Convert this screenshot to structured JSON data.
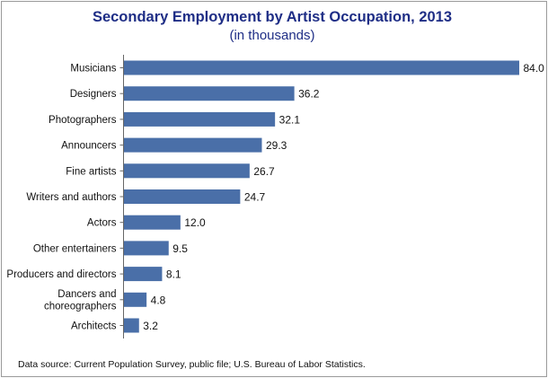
{
  "chart_data": {
    "type": "bar",
    "orientation": "horizontal",
    "title": "Secondary Employment by Artist Occupation, 2013",
    "subtitle": "(in thousands)",
    "categories": [
      [
        "Musicians"
      ],
      [
        "Designers"
      ],
      [
        "Photographers"
      ],
      [
        "Announcers"
      ],
      [
        "Fine artists"
      ],
      [
        "Writers and authors"
      ],
      [
        "Actors"
      ],
      [
        "Other entertainers"
      ],
      [
        "Producers and directors"
      ],
      [
        "Dancers and",
        "choreographers"
      ],
      [
        "Architects"
      ]
    ],
    "values": [
      84.0,
      36.2,
      32.1,
      29.3,
      26.7,
      24.7,
      12.0,
      9.5,
      8.1,
      4.8,
      3.2
    ],
    "value_labels": [
      "84.0",
      "36.2",
      "32.1",
      "29.3",
      "26.7",
      "24.7",
      "12.0",
      "9.5",
      "8.1",
      "4.8",
      "3.2"
    ],
    "xlim": [
      0,
      84.0
    ],
    "grid": false,
    "bar_color": "#4a6fa8",
    "title_color": "#1f2e86",
    "source": "Data source: Current Population Survey, public file; U.S. Bureau of Labor Statistics."
  }
}
